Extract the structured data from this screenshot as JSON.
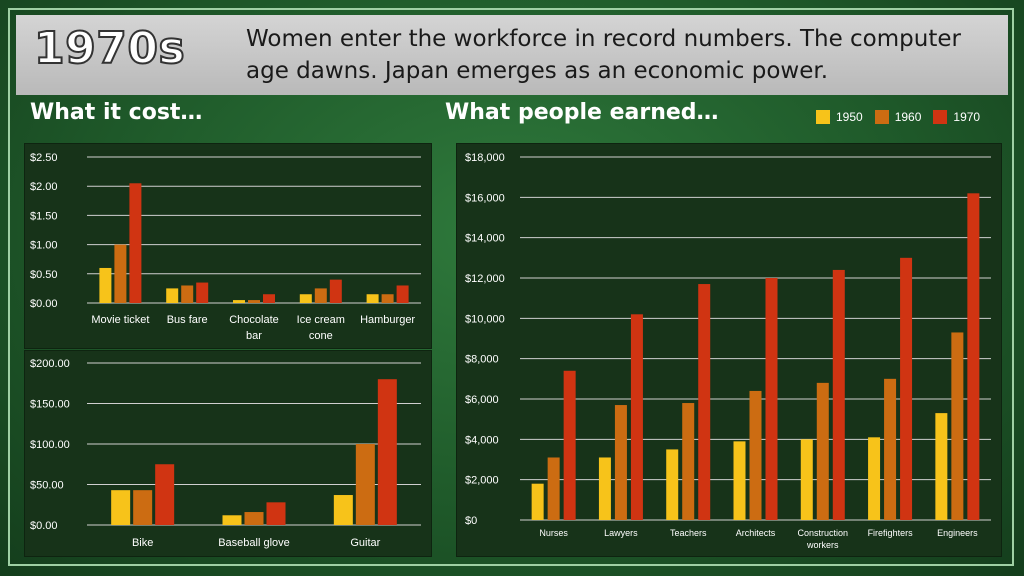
{
  "header": {
    "big_title": "1970s",
    "subtitle": "Women enter the workforce in record numbers. The computer age dawns. Japan emerges as an economic power."
  },
  "sections": {
    "cost_label": "What it cost…",
    "earned_label": "What people earned…"
  },
  "colors": {
    "1950": "#f7c31a",
    "1960": "#cc6c12",
    "1970": "#d03412",
    "grid": "#d0d0d0",
    "panel": "#173319"
  },
  "legend": [
    {
      "label": "1950",
      "color": "#f7c31a"
    },
    {
      "label": "1960",
      "color": "#cc6c12"
    },
    {
      "label": "1970",
      "color": "#d03412"
    }
  ],
  "chart_data": [
    {
      "id": "cost_small",
      "type": "bar",
      "categories": [
        [
          "Movie ticket"
        ],
        [
          "Bus fare"
        ],
        [
          "Chocolate",
          "bar"
        ],
        [
          "Ice cream",
          "cone"
        ],
        [
          "Hamburger"
        ]
      ],
      "series": [
        {
          "name": "1950",
          "values": [
            0.6,
            0.25,
            0.05,
            0.15,
            0.15
          ]
        },
        {
          "name": "1960",
          "values": [
            1.0,
            0.3,
            0.05,
            0.25,
            0.15
          ]
        },
        {
          "name": "1970",
          "values": [
            2.05,
            0.35,
            0.15,
            0.4,
            0.3
          ]
        }
      ],
      "ylim": [
        0,
        2.5
      ],
      "yticks": [
        "$0.00",
        "$0.50",
        "$1.00",
        "$1.50",
        "$2.00",
        "$2.50"
      ],
      "grid": true
    },
    {
      "id": "cost_large",
      "type": "bar",
      "categories": [
        [
          "Bike"
        ],
        [
          "Baseball glove"
        ],
        [
          "Guitar"
        ]
      ],
      "series": [
        {
          "name": "1950",
          "values": [
            43,
            12,
            37
          ]
        },
        {
          "name": "1960",
          "values": [
            43,
            16,
            100
          ]
        },
        {
          "name": "1970",
          "values": [
            75,
            28,
            180
          ]
        }
      ],
      "ylim": [
        0,
        200
      ],
      "yticks": [
        "$0.00",
        "$50.00",
        "$100.00",
        "$150.00",
        "$200.00"
      ],
      "grid": true
    },
    {
      "id": "earnings",
      "type": "bar",
      "categories": [
        [
          "Nurses"
        ],
        [
          "Lawyers"
        ],
        [
          "Teachers"
        ],
        [
          "Architects"
        ],
        [
          "Construction",
          "workers"
        ],
        [
          "Firefighters"
        ],
        [
          "Engineers"
        ]
      ],
      "series": [
        {
          "name": "1950",
          "values": [
            1800,
            3100,
            3500,
            3900,
            4000,
            4100,
            5300
          ]
        },
        {
          "name": "1960",
          "values": [
            3100,
            5700,
            5800,
            6400,
            6800,
            7000,
            9300
          ]
        },
        {
          "name": "1970",
          "values": [
            7400,
            10200,
            11700,
            12000,
            12400,
            13000,
            16200
          ]
        }
      ],
      "ylim": [
        0,
        18000
      ],
      "yticks": [
        "$0",
        "$2,000",
        "$4,000",
        "$6,000",
        "$8,000",
        "$10,000",
        "$12,000",
        "$14,000",
        "$16,000",
        "$18,000"
      ],
      "grid": true
    }
  ]
}
